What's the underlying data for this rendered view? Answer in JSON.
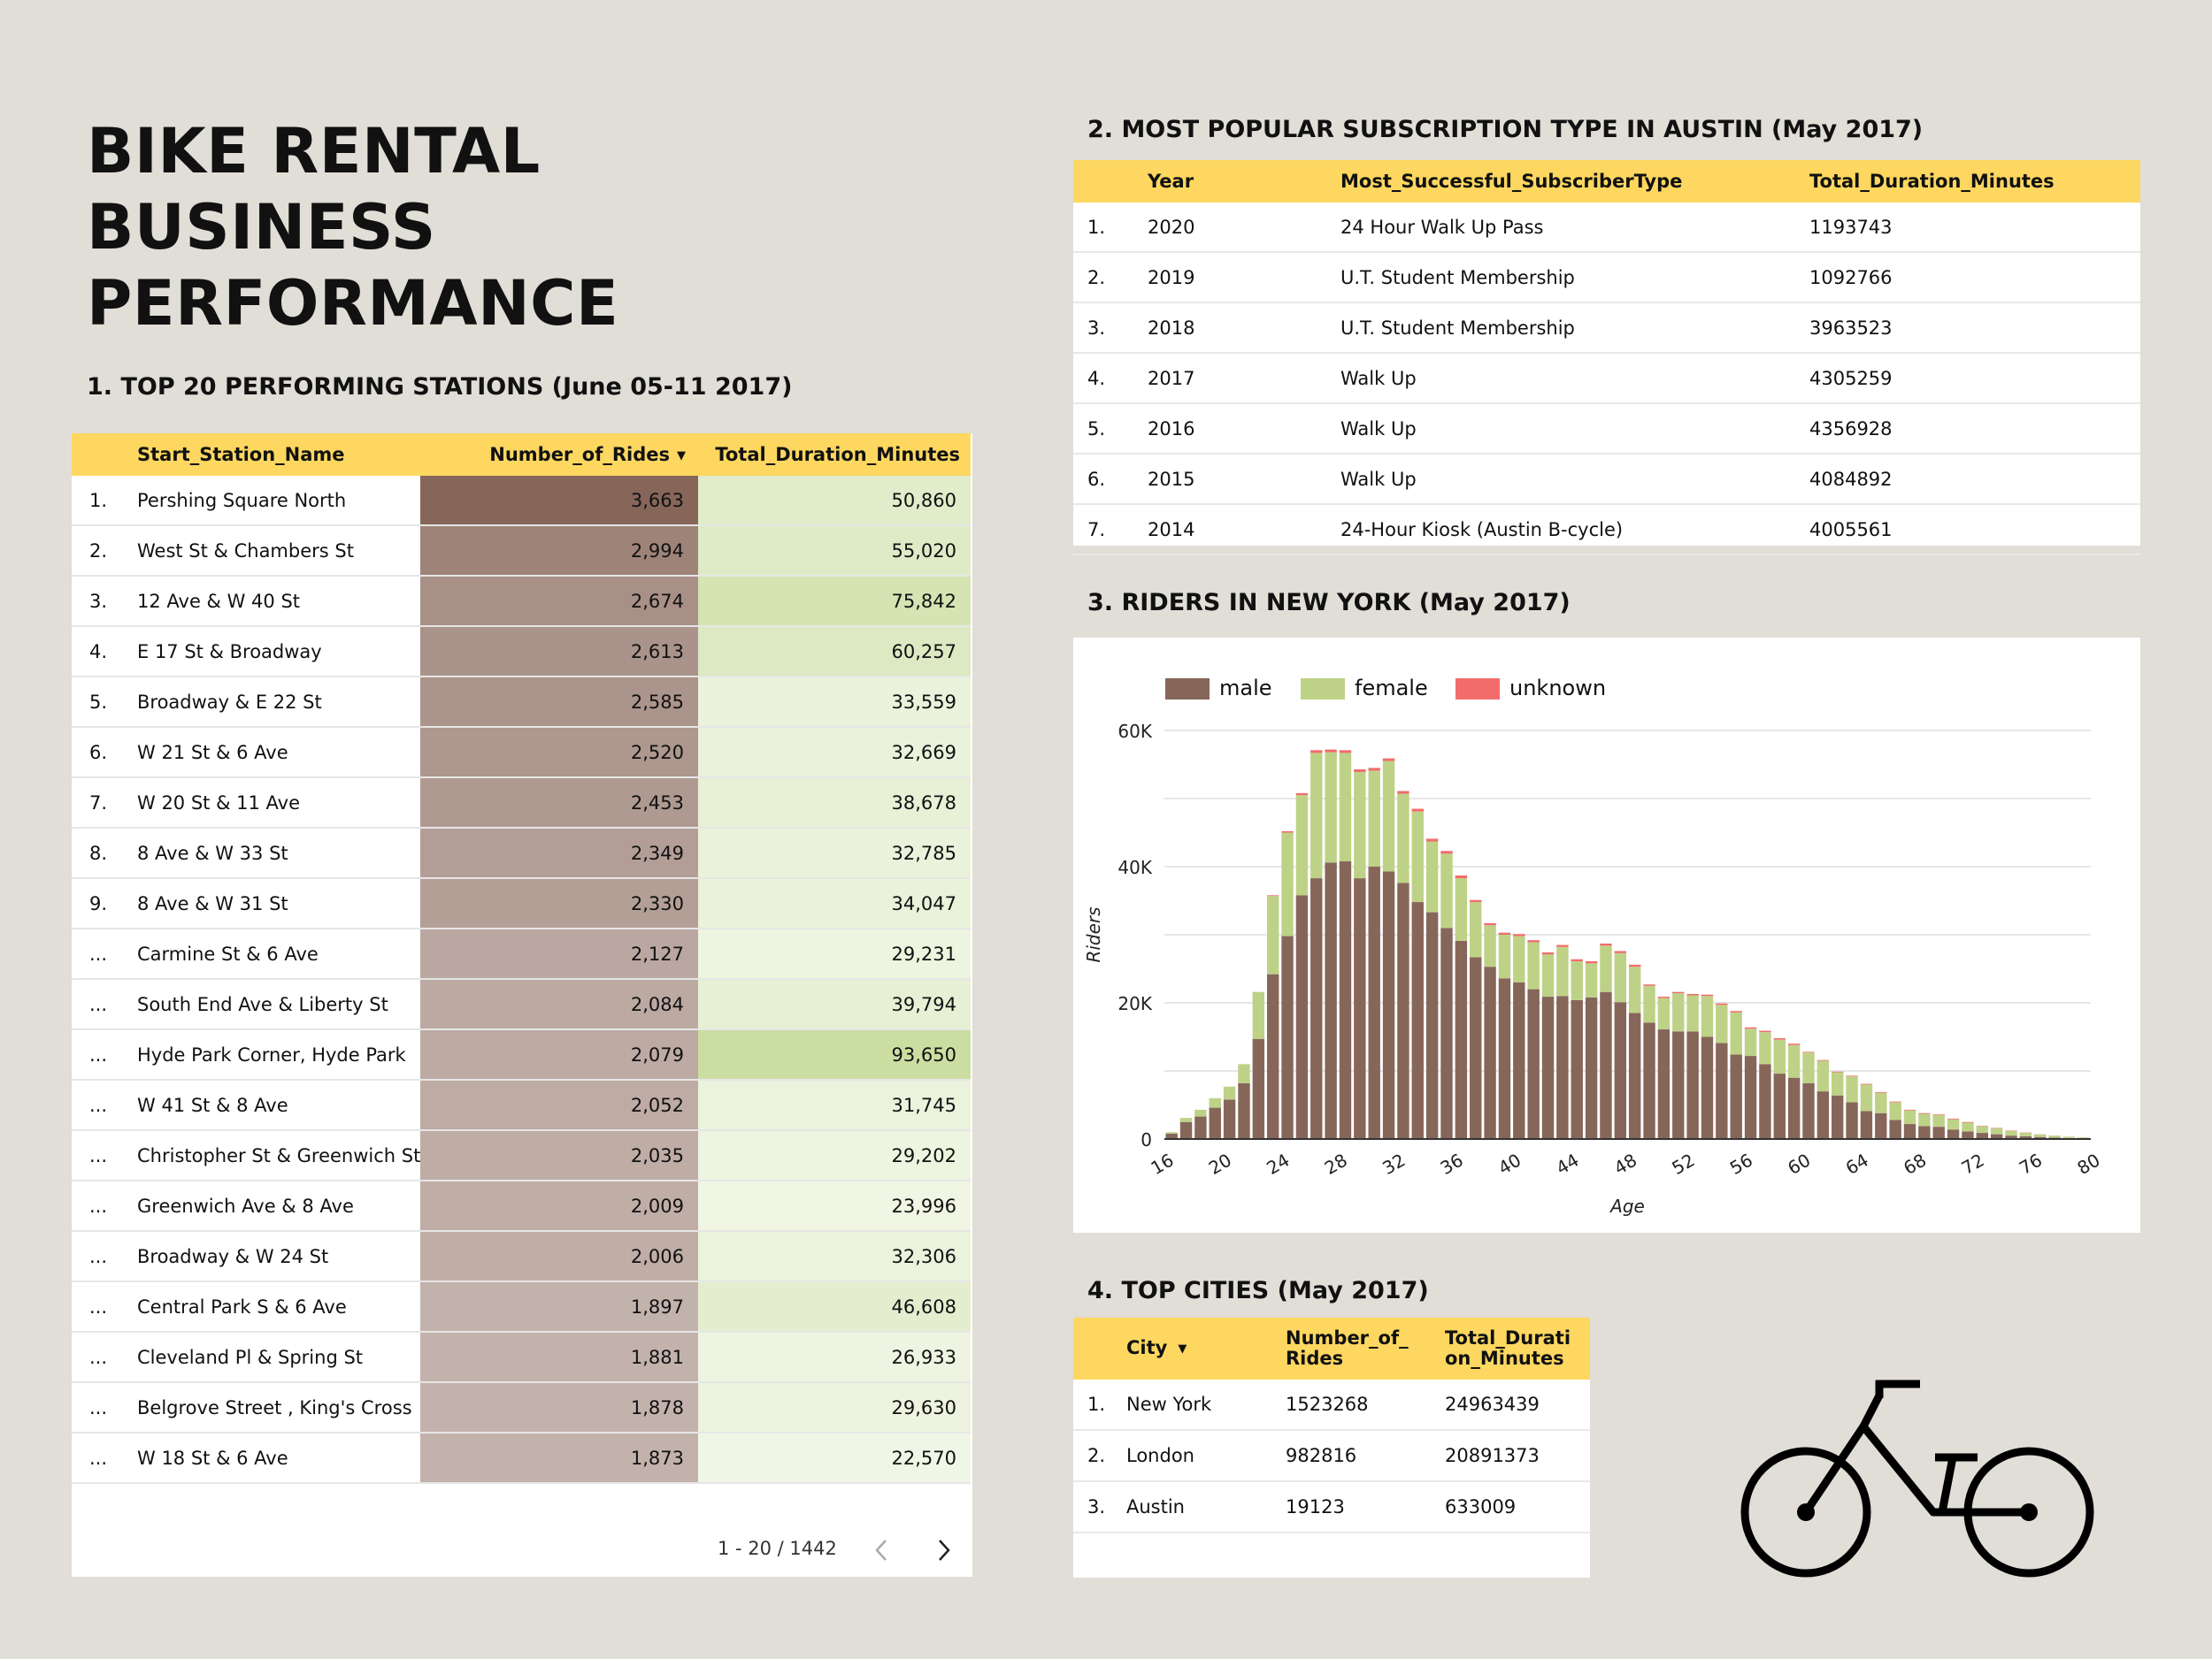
{
  "title": "BIKE RENTAL BUSINESS PERFORMANCE",
  "section1": {
    "title": "1. TOP 20 PERFORMING STATIONS (June 05-11 2017)",
    "columns": [
      "Start_Station_Name",
      "Number_of_Rides",
      "Total_Duration_Minutes"
    ],
    "sort_icon": "sort-desc-icon",
    "rows": [
      {
        "idx": "1.",
        "name": "Pershing Square North",
        "rides": "3,663",
        "dur": "50,860"
      },
      {
        "idx": "2.",
        "name": "West St & Chambers St",
        "rides": "2,994",
        "dur": "55,020"
      },
      {
        "idx": "3.",
        "name": "12 Ave & W 40 St",
        "rides": "2,674",
        "dur": "75,842"
      },
      {
        "idx": "4.",
        "name": "E 17 St & Broadway",
        "rides": "2,613",
        "dur": "60,257"
      },
      {
        "idx": "5.",
        "name": "Broadway & E 22 St",
        "rides": "2,585",
        "dur": "33,559"
      },
      {
        "idx": "6.",
        "name": "W 21 St & 6 Ave",
        "rides": "2,520",
        "dur": "32,669"
      },
      {
        "idx": "7.",
        "name": "W 20 St & 11 Ave",
        "rides": "2,453",
        "dur": "38,678"
      },
      {
        "idx": "8.",
        "name": "8 Ave & W 33 St",
        "rides": "2,349",
        "dur": "32,785"
      },
      {
        "idx": "9.",
        "name": "8 Ave & W 31 St",
        "rides": "2,330",
        "dur": "34,047"
      },
      {
        "idx": "...",
        "name": "Carmine St & 6 Ave",
        "rides": "2,127",
        "dur": "29,231"
      },
      {
        "idx": "...",
        "name": "South End Ave & Liberty St",
        "rides": "2,084",
        "dur": "39,794"
      },
      {
        "idx": "...",
        "name": "Hyde Park Corner, Hyde Park",
        "rides": "2,079",
        "dur": "93,650"
      },
      {
        "idx": "...",
        "name": "W 41 St & 8 Ave",
        "rides": "2,052",
        "dur": "31,745"
      },
      {
        "idx": "...",
        "name": "Christopher St & Greenwich St",
        "rides": "2,035",
        "dur": "29,202"
      },
      {
        "idx": "...",
        "name": "Greenwich Ave & 8 Ave",
        "rides": "2,009",
        "dur": "23,996"
      },
      {
        "idx": "...",
        "name": "Broadway & W 24 St",
        "rides": "2,006",
        "dur": "32,306"
      },
      {
        "idx": "...",
        "name": "Central Park S & 6 Ave",
        "rides": "1,897",
        "dur": "46,608"
      },
      {
        "idx": "...",
        "name": "Cleveland Pl & Spring St",
        "rides": "1,881",
        "dur": "26,933"
      },
      {
        "idx": "...",
        "name": "Belgrove Street , King's Cross",
        "rides": "1,878",
        "dur": "29,630"
      },
      {
        "idx": "...",
        "name": "W 18 St & 6 Ave",
        "rides": "1,873",
        "dur": "22,570"
      }
    ],
    "pager": "1 - 20 / 1442",
    "colors": {
      "rides_heat": "#87665a",
      "duration_heat": "#c5da98"
    }
  },
  "section2": {
    "title": "2. MOST POPULAR SUBSCRIPTION TYPE IN AUSTIN (May 2017)",
    "columns": [
      "Year",
      "Most_Successful_SubscriberType",
      "Total_Duration_Minutes"
    ],
    "rows": [
      {
        "idx": "1.",
        "year": "2020",
        "type": "24 Hour Walk Up Pass",
        "dur": "1193743"
      },
      {
        "idx": "2.",
        "year": "2019",
        "type": "U.T. Student Membership",
        "dur": "1092766"
      },
      {
        "idx": "3.",
        "year": "2018",
        "type": "U.T. Student Membership",
        "dur": "3963523"
      },
      {
        "idx": "4.",
        "year": "2017",
        "type": "Walk Up",
        "dur": "4305259"
      },
      {
        "idx": "5.",
        "year": "2016",
        "type": "Walk Up",
        "dur": "4356928"
      },
      {
        "idx": "6.",
        "year": "2015",
        "type": "Walk Up",
        "dur": "4084892"
      },
      {
        "idx": "7.",
        "year": "2014",
        "type": "24-Hour Kiosk (Austin B-cycle)",
        "dur": "4005561"
      }
    ]
  },
  "section3": {
    "title": "3. RIDERS IN NEW YORK  (May 2017)",
    "chart_data": {
      "type": "bar",
      "stacked": true,
      "xlabel": "Age",
      "ylabel": "Riders",
      "ylim": [
        0,
        60000
      ],
      "y_ticks": [
        0,
        20000,
        40000,
        60000
      ],
      "y_tick_labels": [
        "0",
        "20K",
        "40K",
        "60K"
      ],
      "x_tick_labels": [
        "16",
        "20",
        "24",
        "28",
        "32",
        "36",
        "40",
        "44",
        "48",
        "52",
        "56",
        "60",
        "64",
        "68",
        "72",
        "76",
        "80"
      ],
      "grid": true,
      "legend_position": "top-left",
      "x": [
        16,
        17,
        18,
        19,
        20,
        21,
        22,
        23,
        24,
        25,
        26,
        27,
        28,
        29,
        30,
        31,
        32,
        33,
        34,
        35,
        36,
        37,
        38,
        39,
        40,
        41,
        42,
        43,
        44,
        45,
        46,
        47,
        48,
        49,
        50,
        51,
        52,
        53,
        54,
        55,
        56,
        57,
        58,
        59,
        60,
        61,
        62,
        63,
        64,
        65,
        66,
        67,
        68,
        69,
        70,
        71,
        72,
        73,
        74,
        75,
        76,
        77,
        78,
        79
      ],
      "series": [
        {
          "name": "male",
          "color": "#87665a",
          "values": [
            800,
            2500,
            3300,
            4600,
            5800,
            8200,
            14700,
            24200,
            29800,
            35800,
            38300,
            40600,
            40800,
            38300,
            40000,
            39300,
            37600,
            34800,
            33300,
            31000,
            29100,
            26700,
            25300,
            23600,
            23000,
            22000,
            20900,
            21000,
            20400,
            20800,
            21600,
            20100,
            18500,
            17100,
            16100,
            15800,
            15800,
            15000,
            14100,
            12400,
            12200,
            11000,
            9600,
            9000,
            8200,
            7000,
            6400,
            5400,
            4100,
            3800,
            2800,
            2200,
            1900,
            1800,
            1400,
            1100,
            900,
            700,
            500,
            400,
            300,
            200,
            150,
            100
          ]
        },
        {
          "name": "female",
          "color": "#bed287",
          "values": [
            200,
            600,
            1000,
            1400,
            1900,
            2800,
            6900,
            11500,
            15200,
            14700,
            18400,
            16200,
            15900,
            15600,
            14100,
            16200,
            13100,
            13300,
            10400,
            10900,
            9200,
            8100,
            6100,
            6400,
            6800,
            6900,
            6200,
            7200,
            5700,
            5000,
            6800,
            7200,
            6800,
            5400,
            4600,
            5600,
            5300,
            6000,
            5600,
            6200,
            4000,
            4700,
            5000,
            4800,
            4500,
            4500,
            3400,
            3800,
            3900,
            3000,
            2600,
            2000,
            1800,
            1700,
            1500,
            1300,
            1000,
            900,
            700,
            500,
            400,
            300,
            200,
            150
          ]
        },
        {
          "name": "unknown",
          "color": "#f26c6c",
          "values": [
            0,
            0,
            0,
            0,
            0,
            0,
            0,
            100,
            200,
            300,
            400,
            400,
            400,
            400,
            400,
            400,
            400,
            400,
            400,
            400,
            400,
            300,
            300,
            300,
            300,
            300,
            300,
            300,
            300,
            300,
            300,
            300,
            300,
            200,
            200,
            200,
            200,
            200,
            200,
            200,
            200,
            200,
            200,
            200,
            100,
            100,
            100,
            100,
            100,
            100,
            100,
            100,
            100,
            100,
            100,
            100,
            50,
            50,
            50,
            50,
            0,
            0,
            0,
            0
          ]
        }
      ]
    }
  },
  "section4": {
    "title": "4. TOP CITIES (May 2017)",
    "col_city": "City",
    "col_rides_l1": "Number_of_",
    "col_rides_l2": "Rides",
    "col_dur_l1": "Total_Durati",
    "col_dur_l2": "on_Minutes",
    "rows": [
      {
        "idx": "1.",
        "city": "New York",
        "rides": "1523268",
        "dur": "24963439"
      },
      {
        "idx": "2.",
        "city": "London",
        "rides": "982816",
        "dur": "20891373"
      },
      {
        "idx": "3.",
        "city": "Austin",
        "rides": "19123",
        "dur": "633009"
      }
    ]
  },
  "icons": {
    "bike": "bicycle-icon",
    "prev": "chevron-left-icon",
    "next": "chevron-right-icon"
  }
}
